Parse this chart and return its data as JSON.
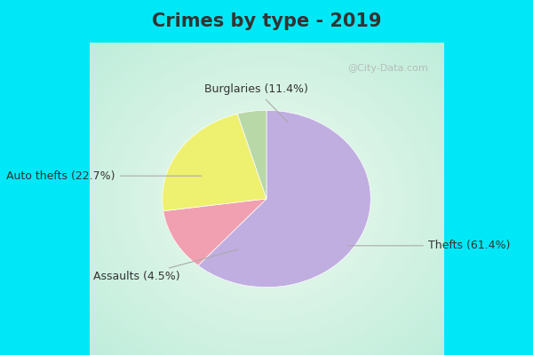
{
  "title": "Crimes by type - 2019",
  "slices": [
    {
      "label": "Thefts (61.4%)",
      "value": 61.4,
      "color": "#c0aee0"
    },
    {
      "label": "Burglaries (11.4%)",
      "value": 11.4,
      "color": "#f0a0b0"
    },
    {
      "label": "Auto thefts (22.7%)",
      "value": 22.7,
      "color": "#eef070"
    },
    {
      "label": "Assaults (4.5%)",
      "value": 4.5,
      "color": "#b8d8a8"
    }
  ],
  "background_outer": "#00e8f8",
  "background_inner_center": "#e8f8f0",
  "background_inner_edge": "#c0e8d8",
  "watermark": "@City-Data.com",
  "title_fontsize": 15,
  "label_fontsize": 9,
  "title_color": "#333333"
}
